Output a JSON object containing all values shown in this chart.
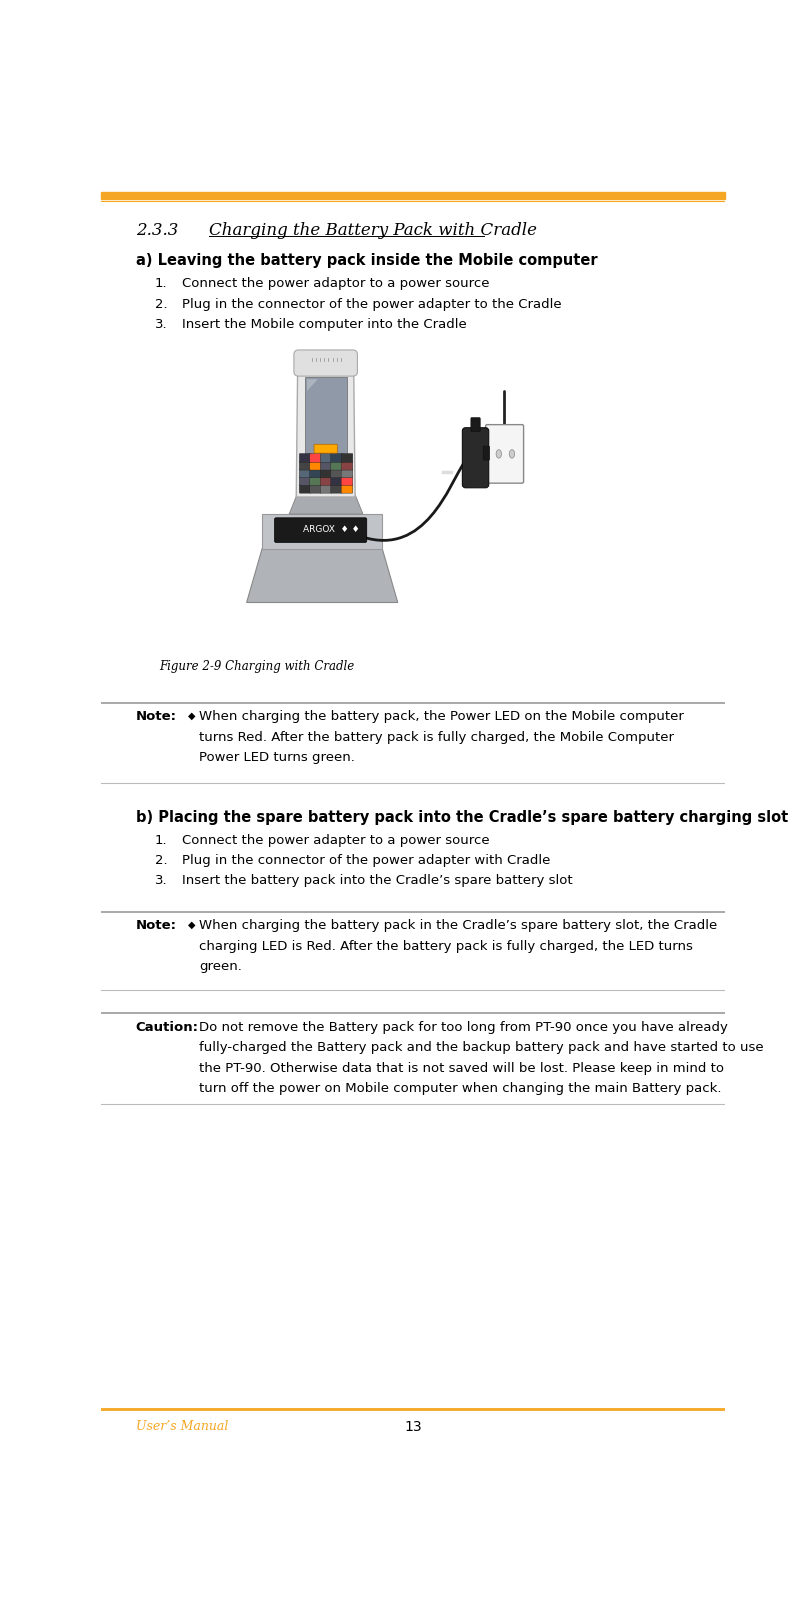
{
  "page_width": 8.06,
  "page_height": 16.04,
  "bg_color": "#ffffff",
  "orange_color": "#f5a623",
  "gray_line_color": "#aaaaaa",
  "light_gray_line": "#cccccc",
  "section_number": "2.3.3",
  "section_tab": "Charging the Battery Pack with Cradle",
  "part_a_bold": "a) Leaving the battery pack inside the Mobile computer",
  "part_a_items": [
    "Connect the power adaptor to a power source",
    "Plug in the connector of the power adapter to the Cradle",
    "Insert the Mobile computer into the Cradle"
  ],
  "figure_caption": "Figure 2-9 Charging with Cradle",
  "note1_label": "Note:",
  "note1_bullet": "◆",
  "note1_lines": [
    "When charging the battery pack, the Power LED on the Mobile computer",
    "turns Red. After the battery pack is fully charged, the Mobile Computer",
    "Power LED turns green."
  ],
  "part_b_bold": "b) Placing the spare battery pack into the Cradle’s spare battery charging slot",
  "part_b_items": [
    "Connect the power adapter to a power source",
    "Plug in the connector of the power adapter with Cradle",
    "Insert the battery pack into the Cradle’s spare battery slot"
  ],
  "note2_label": "Note:",
  "note2_bullet": "◆",
  "note2_lines": [
    "When charging the battery pack in the Cradle’s spare battery slot, the Cradle",
    "charging LED is Red. After the battery pack is fully charged, the LED turns",
    "green."
  ],
  "caution_label": "Caution:",
  "caution_lines": [
    "Do not remove the Battery pack for too long from PT-90 once you have already",
    "fully-charged the Battery pack and the backup battery pack and have started to use",
    "the PT-90. Otherwise data that is not saved will be lost. Please keep in mind to",
    "turn off the power on Mobile computer when changing the main Battery pack."
  ],
  "footer_left": "User’s Manual",
  "footer_center": "13",
  "text_color": "#000000",
  "body_fontsize": 9.5,
  "section_fontsize": 12,
  "bold_fontsize": 10.5,
  "footer_fontsize": 9
}
